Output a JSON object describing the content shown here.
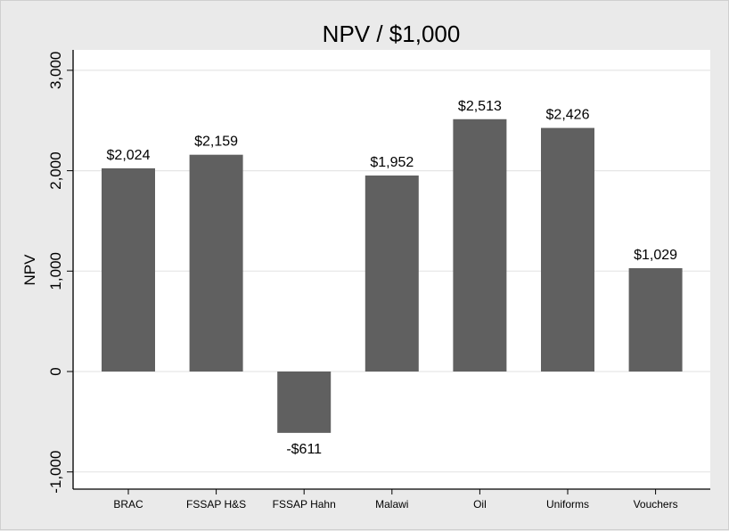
{
  "chart_data": {
    "type": "bar",
    "title": "NPV / $1,000",
    "xlabel": "",
    "ylabel": "NPV",
    "categories": [
      "BRAC",
      "FSSAP H&S",
      "FSSAP Hahn",
      "Malawi",
      "Oil",
      "Uniforms",
      "Vouchers"
    ],
    "values": [
      2024,
      2159,
      -611,
      1952,
      2513,
      2426,
      1029
    ],
    "data_labels": [
      "$2,024",
      "$2,159",
      "-$611",
      "$1,952",
      "$2,513",
      "$2,426",
      "$1,029"
    ],
    "ylim": [
      -1200,
      3200
    ],
    "yticks": [
      -1000,
      0,
      1000,
      2000,
      3000
    ],
    "ytick_labels": [
      "-1,000",
      "0",
      "1,000",
      "2,000",
      "3,000"
    ],
    "grid": true,
    "colors": {
      "bar": "#606060",
      "background": "#eaeaea",
      "plot_background": "#ffffff",
      "grid": "#e6e6e6"
    }
  }
}
